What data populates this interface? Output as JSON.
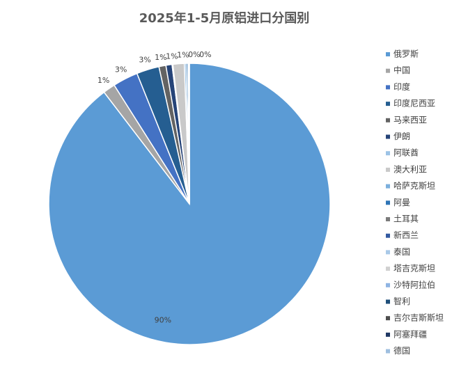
{
  "chart_data": {
    "type": "pie",
    "title": "2025年1-5月原铝进口分国别",
    "categories": [
      "俄罗斯",
      "中国",
      "印度",
      "印度尼西亚",
      "马来西亚",
      "伊朗",
      "阿联酋",
      "澳大利亚",
      "哈萨克斯坦",
      "阿曼",
      "土耳其",
      "新西兰",
      "泰国",
      "塔吉克斯坦",
      "沙特阿拉伯",
      "智利",
      "吉尔吉斯斯坦",
      "阿塞拜疆",
      "德国"
    ],
    "values": [
      89.6,
      1.4,
      2.9,
      2.6,
      0.8,
      0.7,
      0.1,
      1.3,
      0.2,
      0.2,
      0.02,
      0.02,
      0.02,
      0.02,
      0.02,
      0.02,
      0.02,
      0.02,
      0.02
    ],
    "value_labels": [
      "90%",
      "1%",
      "3%",
      "3%",
      "1%",
      "1%",
      null,
      "1%",
      "0%",
      "0%",
      null,
      null,
      null,
      null,
      null,
      null,
      null,
      null,
      null
    ],
    "colors": [
      "#5b9bd5",
      "#a5a5a5",
      "#4472c4",
      "#255e91",
      "#636363",
      "#264478",
      "#9dc3e6",
      "#c9c9c9",
      "#7cafdd",
      "#2e75b6",
      "#7b7b7b",
      "#335aa1",
      "#a9c9e8",
      "#d0d0d0",
      "#8fb4e3",
      "#1f4e79",
      "#4d4d4d",
      "#203864",
      "#9fbfdf"
    ],
    "legend": "right"
  }
}
